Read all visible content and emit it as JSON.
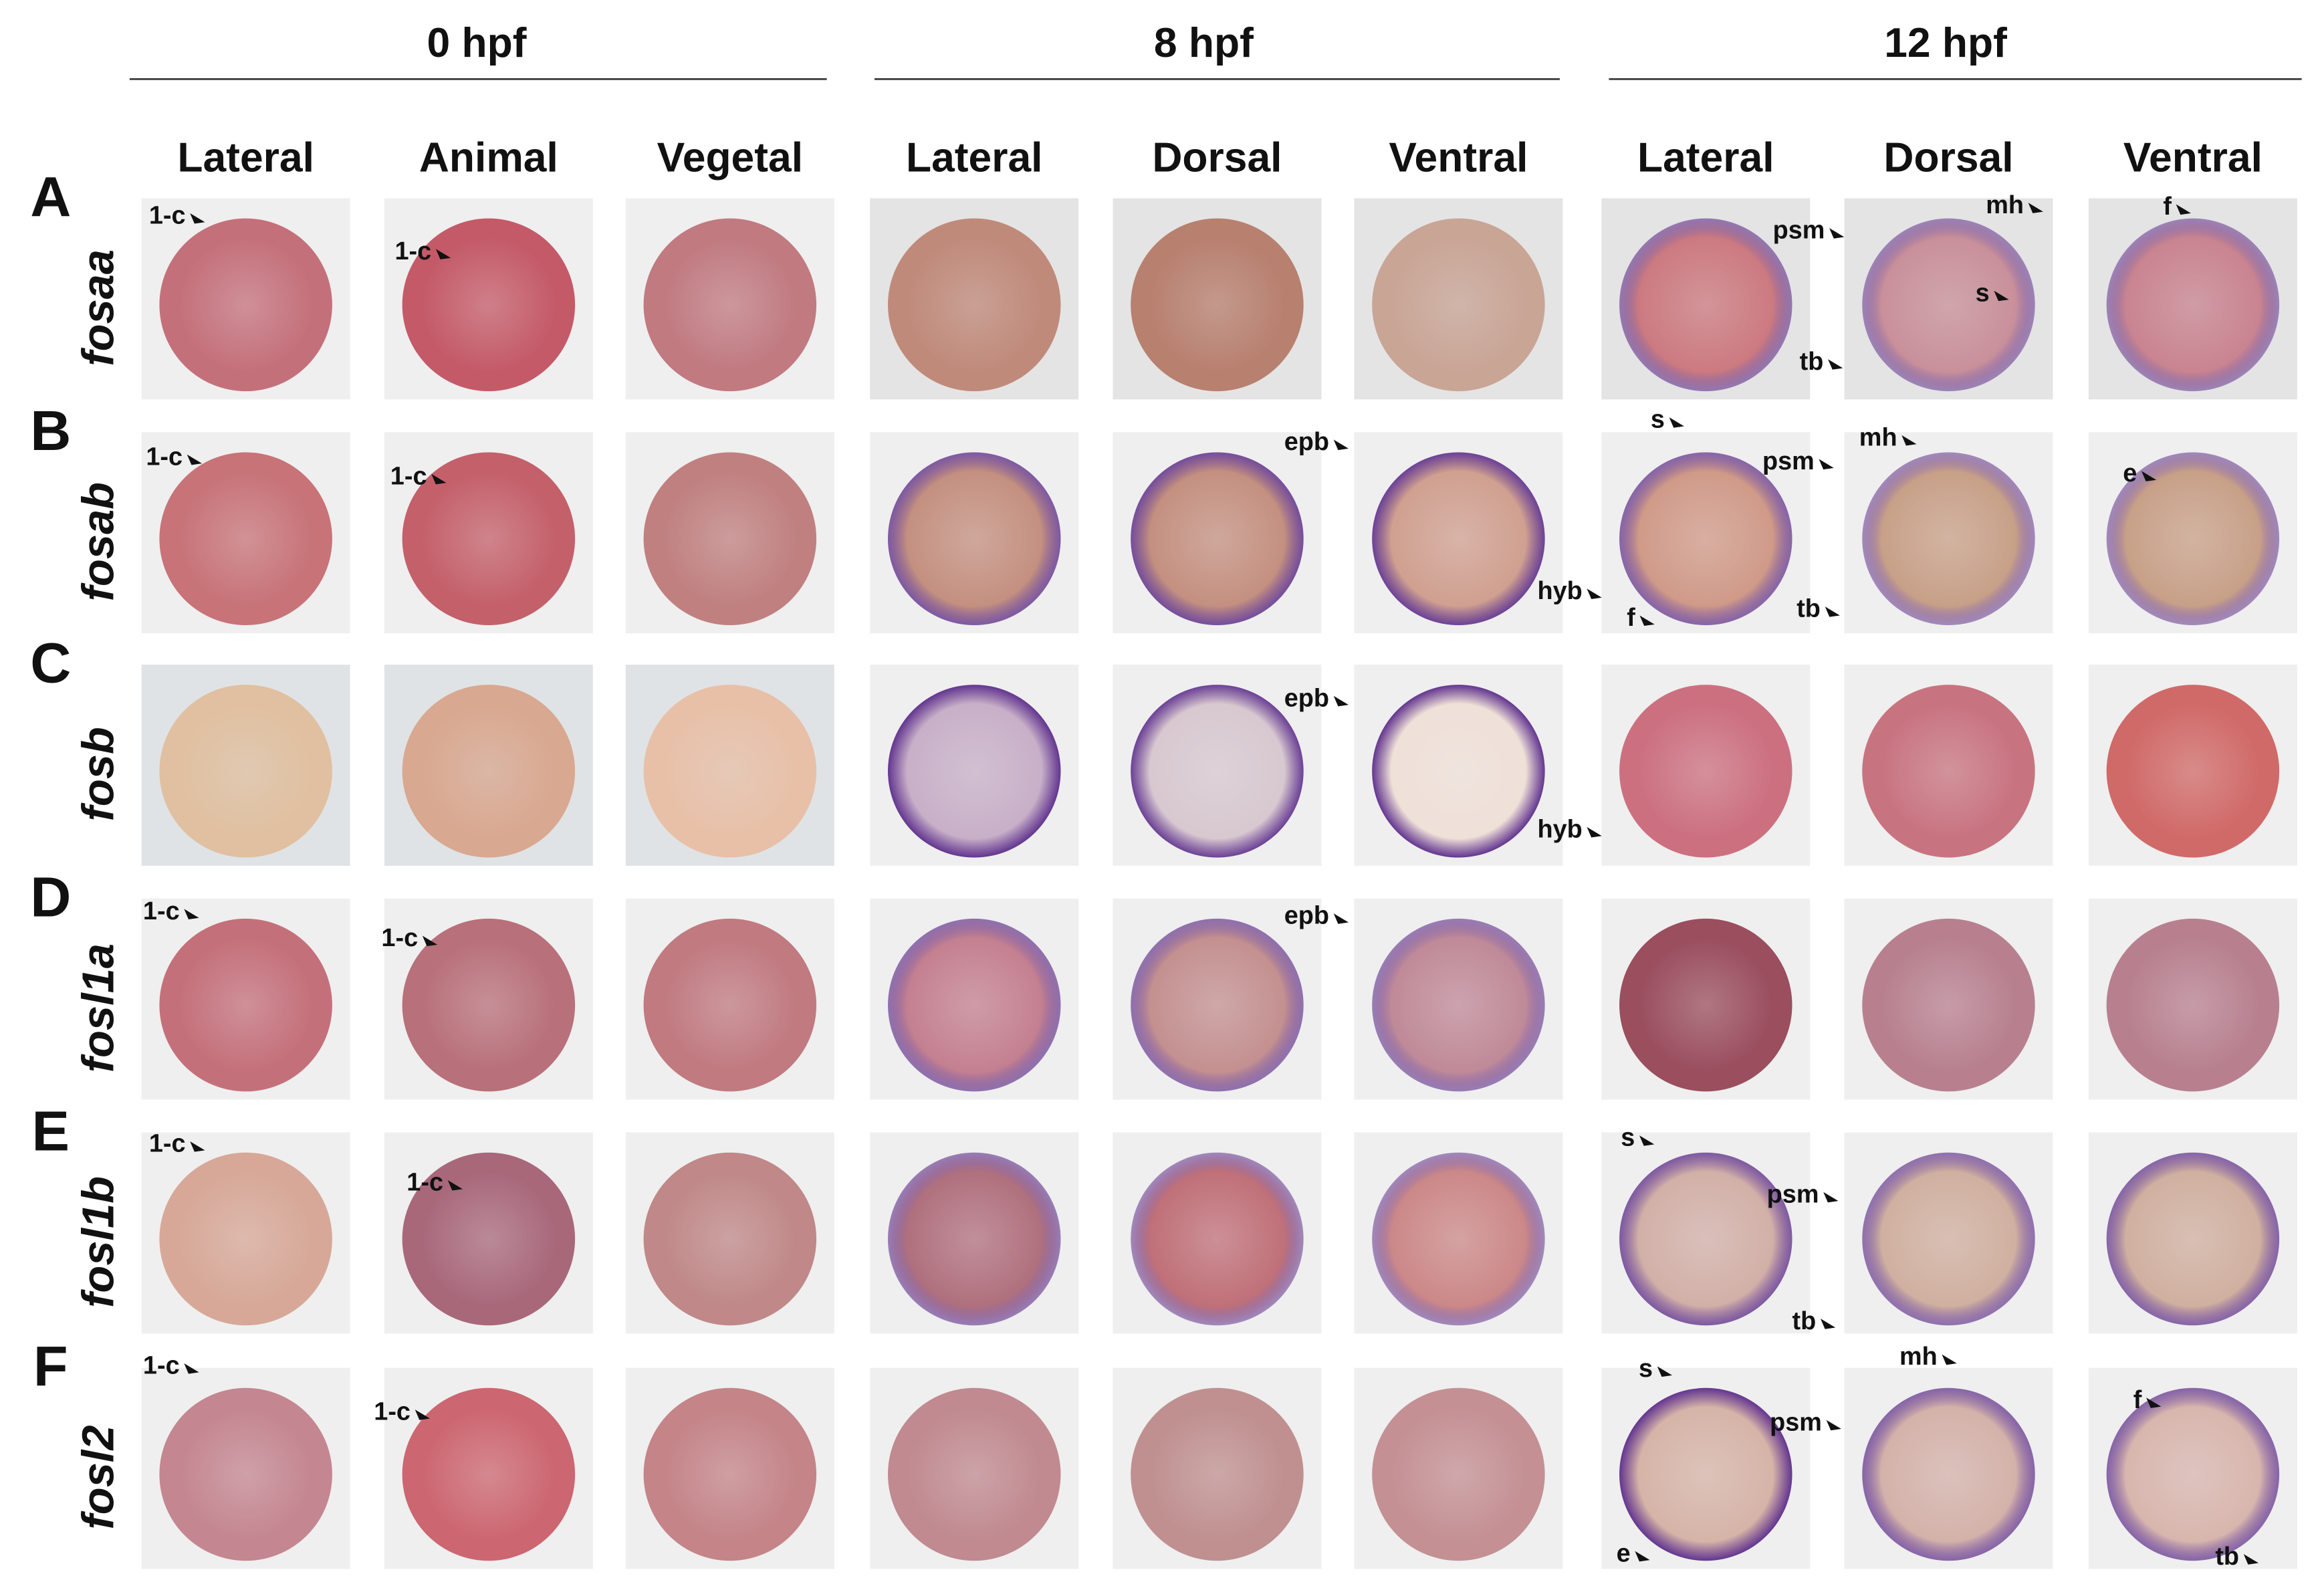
{
  "header": {
    "groups": [
      "0 hpf",
      "8 hpf",
      "12 hpf"
    ],
    "views": [
      "Lateral",
      "Animal",
      "Vegetal",
      "Lateral",
      "Dorsal",
      "Ventral",
      "Lateral",
      "Dorsal",
      "Ventral"
    ]
  },
  "rows": [
    {
      "letter": "A",
      "gene": "fosaa",
      "cells": [
        [
          "1-c"
        ],
        [
          "1-c"
        ],
        [],
        [],
        [],
        [],
        [
          "psm",
          "tb"
        ],
        [
          "mh",
          "s"
        ],
        [
          "f"
        ]
      ]
    },
    {
      "letter": "B",
      "gene": "fosab",
      "cells": [
        [
          "1-c"
        ],
        [
          "1-c"
        ],
        [],
        [],
        [
          "epb"
        ],
        [
          "hyb"
        ],
        [
          "s",
          "psm",
          "f",
          "tb"
        ],
        [
          "mh"
        ],
        [
          "e"
        ]
      ]
    },
    {
      "letter": "C",
      "gene": "fosb",
      "cells": [
        [],
        [],
        [],
        [],
        [
          "epb"
        ],
        [
          "hyb"
        ],
        [],
        [],
        []
      ]
    },
    {
      "letter": "D",
      "gene": "fosl1a",
      "cells": [
        [
          "1-c"
        ],
        [
          "1-c"
        ],
        [],
        [],
        [
          "epb"
        ],
        [],
        [],
        [],
        []
      ]
    },
    {
      "letter": "E",
      "gene": "fosl1b",
      "cells": [
        [
          "1-c"
        ],
        [
          "1-c"
        ],
        [],
        [],
        [],
        [],
        [
          "s",
          "psm",
          "tb"
        ],
        [],
        []
      ]
    },
    {
      "letter": "F",
      "gene": "fosl2",
      "cells": [
        [
          "1-c"
        ],
        [
          "1-c"
        ],
        [],
        [],
        [],
        [],
        [
          "s",
          "psm",
          "e"
        ],
        [
          "mh"
        ],
        [
          "f",
          "tb"
        ]
      ]
    }
  ]
}
